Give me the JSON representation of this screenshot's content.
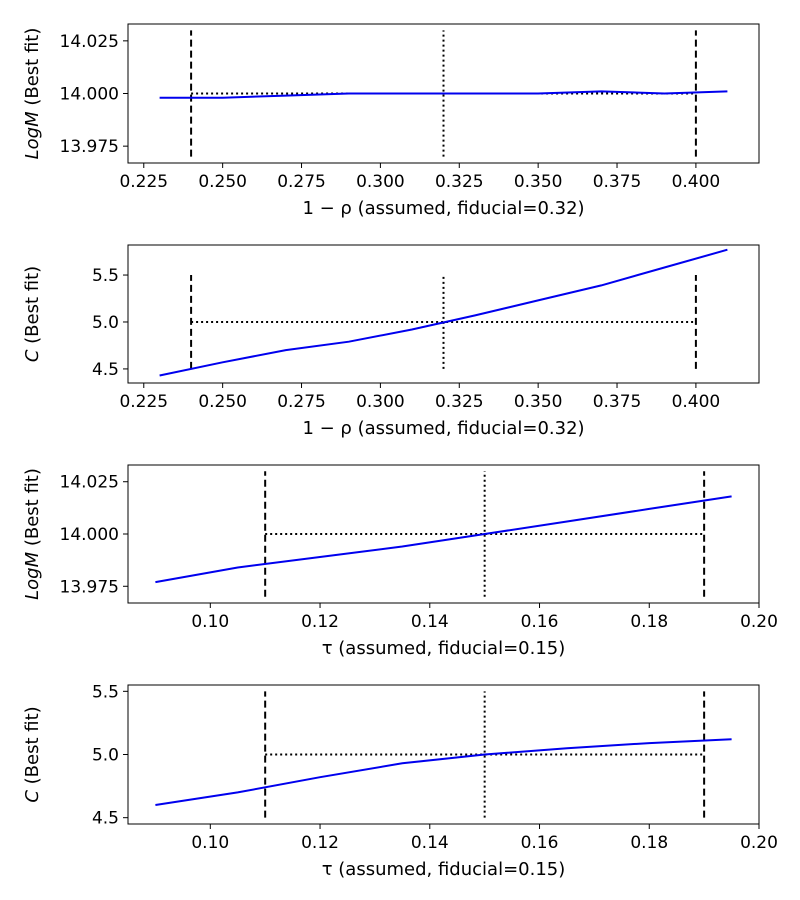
{
  "chart_data": [
    {
      "type": "line",
      "xlabel": "1 − ρ (assumed, fiducial=0.32)",
      "ylabel_italic": "LogM",
      "ylabel_rest": " (Best fit)",
      "xlim": [
        0.22,
        0.42
      ],
      "ylim": [
        13.967,
        14.033
      ],
      "xticks": [
        "0.225",
        "0.250",
        "0.275",
        "0.300",
        "0.325",
        "0.350",
        "0.375",
        "0.400"
      ],
      "yticks": [
        "13.975",
        "14.000",
        "14.025"
      ],
      "line_color": "#0000ee",
      "series": [
        {
          "x": [
            0.23,
            0.25,
            0.27,
            0.29,
            0.31,
            0.33,
            0.35,
            0.37,
            0.39,
            0.41
          ],
          "y": [
            13.998,
            13.998,
            13.999,
            14.0,
            14.0,
            14.0,
            14.0,
            14.001,
            14.0,
            14.001
          ]
        }
      ],
      "fiducial_x": 0.32,
      "fiducial_y": 14.0,
      "bound_lines_x": [
        0.24,
        0.4
      ],
      "ref_ymin": 13.97,
      "ref_ymax": 14.03
    },
    {
      "type": "line",
      "xlabel": "1 − ρ (assumed, fiducial=0.32)",
      "ylabel_italic": "C",
      "ylabel_rest": " (Best fit)",
      "xlim": [
        0.22,
        0.42
      ],
      "ylim": [
        4.35,
        5.82
      ],
      "xticks": [
        "0.225",
        "0.250",
        "0.275",
        "0.300",
        "0.325",
        "0.350",
        "0.375",
        "0.400"
      ],
      "yticks": [
        "4.5",
        "5.0",
        "5.5"
      ],
      "line_color": "#0000ee",
      "series": [
        {
          "x": [
            0.23,
            0.25,
            0.27,
            0.29,
            0.31,
            0.33,
            0.35,
            0.37,
            0.39,
            0.41
          ],
          "y": [
            4.43,
            4.57,
            4.7,
            4.79,
            4.92,
            5.07,
            5.23,
            5.39,
            5.58,
            5.77
          ]
        }
      ],
      "fiducial_x": 0.32,
      "fiducial_y": 5.0,
      "bound_lines_x": [
        0.24,
        0.4
      ],
      "ref_ymin": 4.5,
      "ref_ymax": 5.5
    },
    {
      "type": "line",
      "xlabel": "τ (assumed, fiducial=0.15)",
      "ylabel_italic": "LogM",
      "ylabel_rest": " (Best fit)",
      "xlim": [
        0.085,
        0.2
      ],
      "ylim": [
        13.967,
        14.033
      ],
      "xticks": [
        "0.10",
        "0.12",
        "0.14",
        "0.16",
        "0.18",
        "0.20"
      ],
      "yticks": [
        "13.975",
        "14.000",
        "14.025"
      ],
      "line_color": "#0000ee",
      "series": [
        {
          "x": [
            0.09,
            0.105,
            0.12,
            0.135,
            0.15,
            0.165,
            0.18,
            0.195
          ],
          "y": [
            13.977,
            13.984,
            13.989,
            13.994,
            14.0,
            14.006,
            14.012,
            14.018
          ]
        }
      ],
      "fiducial_x": 0.15,
      "fiducial_y": 14.0,
      "bound_lines_x": [
        0.11,
        0.19
      ],
      "ref_ymin": 13.97,
      "ref_ymax": 14.03
    },
    {
      "type": "line",
      "xlabel": "τ (assumed, fiducial=0.15)",
      "ylabel_italic": "C",
      "ylabel_rest": " (Best fit)",
      "xlim": [
        0.085,
        0.2
      ],
      "ylim": [
        4.45,
        5.55
      ],
      "xticks": [
        "0.10",
        "0.12",
        "0.14",
        "0.16",
        "0.18",
        "0.20"
      ],
      "yticks": [
        "4.5",
        "5.0",
        "5.5"
      ],
      "line_color": "#0000ee",
      "series": [
        {
          "x": [
            0.09,
            0.105,
            0.12,
            0.135,
            0.15,
            0.165,
            0.18,
            0.195
          ],
          "y": [
            4.6,
            4.7,
            4.82,
            4.93,
            5.0,
            5.05,
            5.09,
            5.12
          ]
        }
      ],
      "fiducial_x": 0.15,
      "fiducial_y": 5.0,
      "bound_lines_x": [
        0.11,
        0.19
      ],
      "ref_ymin": 4.5,
      "ref_ymax": 5.5
    }
  ]
}
